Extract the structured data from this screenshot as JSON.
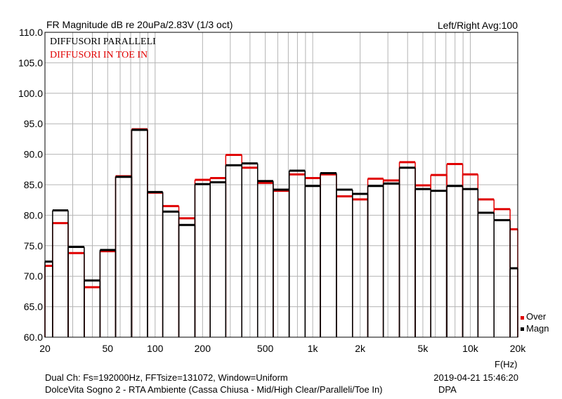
{
  "header": {
    "title": "FR Magnitude dB re 20uPa/2.83V (1/3 oct)",
    "channel_info": "Left/Right  Avg:100"
  },
  "footer": {
    "line1_left": "Dual Ch: Fs=192000Hz, FFTsize=131072, Window=Uniform",
    "line1_right": "2019-04-21  15:46:20",
    "line2_left": "DolceVita Sogno 2 - RTA Ambiente (Cassa Chiusa - Mid/High Clear/Paralleli/Toe In)",
    "line2_right": "DPA"
  },
  "colors": {
    "paralleli": "#000000",
    "toe_in": "#e00000"
  },
  "chart_data": {
    "type": "bar",
    "title": "FR Magnitude dB re 20uPa/2.83V (1/3 oct)",
    "xlabel": "F(Hz)",
    "ylabel": "",
    "x_scale": "log",
    "xlim": [
      20,
      20000
    ],
    "ylim": [
      60,
      110
    ],
    "grid": true,
    "x_ticks": [
      20,
      50,
      100,
      200,
      500,
      1000,
      2000,
      5000,
      10000,
      20000
    ],
    "x_tick_labels": [
      "20",
      "50",
      "100",
      "200",
      "500",
      "1k",
      "2k",
      "5k",
      "10k",
      "20k"
    ],
    "y_ticks": [
      60,
      65,
      70,
      75,
      80,
      85,
      90,
      95,
      100,
      105,
      110
    ],
    "y_tick_labels": [
      "60.0",
      "65.0",
      "70.0",
      "75.0",
      "80.0",
      "85.0",
      "90.0",
      "95.0",
      "100.0",
      "105.0",
      "110.0"
    ],
    "annotations": [
      "DIFFUSORI PARALLELI",
      "DIFFUSORI IN TOE IN"
    ],
    "legend": {
      "position": "bottom-right",
      "entries": [
        "Over",
        "Magn"
      ]
    },
    "categories": [
      20,
      25,
      31.5,
      40,
      50,
      63,
      80,
      100,
      125,
      160,
      200,
      250,
      315,
      400,
      500,
      630,
      800,
      1000,
      1250,
      1600,
      2000,
      2500,
      3150,
      4000,
      5000,
      6300,
      8000,
      10000,
      12500,
      16000,
      20000
    ],
    "series": [
      {
        "name": "Magn",
        "values": [
          72.4,
          80.8,
          74.8,
          69.3,
          74.3,
          86.3,
          94.0,
          83.8,
          80.6,
          78.4,
          85.1,
          85.4,
          88.2,
          88.5,
          85.6,
          84.2,
          87.3,
          84.8,
          86.9,
          84.2,
          83.5,
          84.8,
          85.2,
          87.8,
          84.3,
          84.0,
          84.8,
          84.3,
          80.4,
          79.2,
          71.3
        ]
      },
      {
        "name": "Over",
        "values": [
          71.7,
          78.7,
          73.8,
          68.2,
          74.1,
          86.4,
          94.1,
          83.7,
          81.5,
          79.5,
          85.8,
          86.1,
          89.9,
          87.8,
          85.3,
          84.0,
          86.7,
          86.1,
          86.7,
          83.1,
          82.6,
          86.0,
          85.7,
          88.7,
          84.9,
          86.6,
          88.4,
          86.7,
          82.6,
          81.0,
          77.7
        ]
      }
    ]
  }
}
